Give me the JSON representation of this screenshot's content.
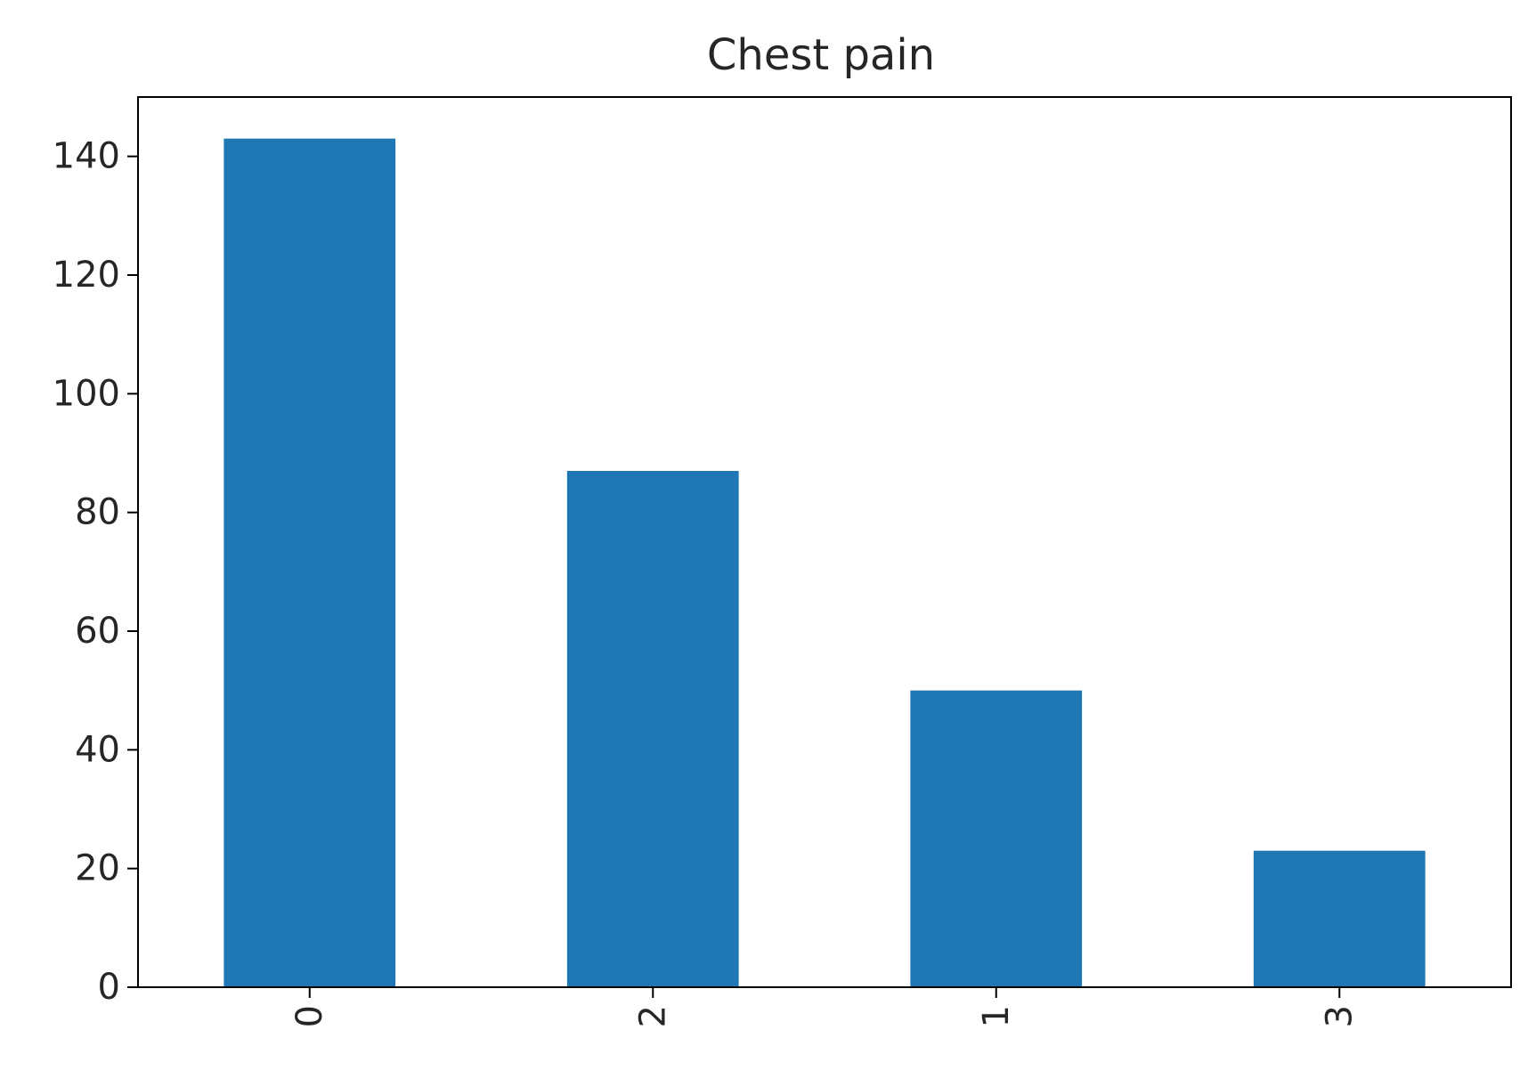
{
  "chart_data": {
    "type": "bar",
    "title": "Chest pain",
    "xlabel": "",
    "ylabel": "",
    "categories": [
      "0",
      "2",
      "1",
      "3"
    ],
    "values": [
      143,
      87,
      50,
      23
    ],
    "ylim": [
      0,
      150
    ],
    "yticks": [
      0,
      20,
      40,
      60,
      80,
      100,
      120,
      140
    ],
    "xtick_rotation": 90,
    "bar_color": "#1f77b4",
    "grid": false,
    "legend": "none"
  }
}
